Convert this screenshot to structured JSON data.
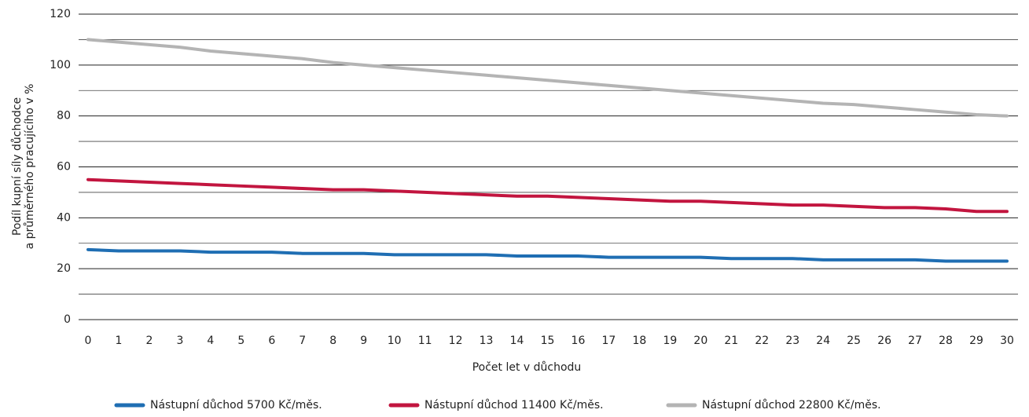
{
  "chart_data": {
    "type": "line",
    "ylabel": [
      "Podíl kupní síly důchodce",
      "a průměrného pracujícího v %"
    ],
    "xlabel": "Počet let v důchodu",
    "x": [
      0,
      1,
      2,
      3,
      4,
      5,
      6,
      7,
      8,
      9,
      10,
      11,
      12,
      13,
      14,
      15,
      16,
      17,
      18,
      19,
      20,
      21,
      22,
      23,
      24,
      25,
      26,
      27,
      28,
      29,
      30
    ],
    "xlim": [
      0,
      30
    ],
    "xticks": [
      0,
      1,
      2,
      3,
      4,
      5,
      6,
      7,
      8,
      9,
      10,
      11,
      12,
      13,
      14,
      15,
      16,
      17,
      18,
      19,
      20,
      21,
      22,
      23,
      24,
      25,
      26,
      27,
      28,
      29,
      30
    ],
    "ylim": [
      0,
      120
    ],
    "yticks": [
      0,
      20,
      40,
      60,
      80,
      100,
      120
    ],
    "yminor": [
      10,
      30,
      50,
      70,
      90,
      110
    ],
    "grid": true,
    "legend": "bottom",
    "series": [
      {
        "name": "Nástupní důchod 5700 Kč/měs.",
        "color": "#1f6eb3",
        "values": [
          27.5,
          27,
          27,
          27,
          26.5,
          26.5,
          26.5,
          26,
          26,
          26,
          25.5,
          25.5,
          25.5,
          25.5,
          25,
          25,
          25,
          24.5,
          24.5,
          24.5,
          24.5,
          24,
          24,
          24,
          23.5,
          23.5,
          23.5,
          23.5,
          23,
          23,
          23
        ]
      },
      {
        "name": "Nástupní důchod 11400 Kč/měs.",
        "color": "#c2153f",
        "values": [
          55,
          54.5,
          54,
          53.5,
          53,
          52.5,
          52,
          51.5,
          51,
          51,
          50.5,
          50,
          49.5,
          49,
          48.5,
          48.5,
          48,
          47.5,
          47,
          46.5,
          46.5,
          46,
          45.5,
          45,
          45,
          44.5,
          44,
          44,
          43.5,
          42.5,
          42.5
        ]
      },
      {
        "name": "Nástupní důchod 22800 Kč/měs.",
        "color": "#b4b4b4",
        "values": [
          110,
          109,
          108,
          107,
          105.5,
          104.5,
          103.5,
          102.5,
          101,
          100,
          99,
          98,
          97,
          96,
          95,
          94,
          93,
          92,
          91,
          90,
          89,
          88,
          87,
          86,
          85,
          84.5,
          83.5,
          82.5,
          81.5,
          80.5,
          80
        ]
      }
    ]
  }
}
